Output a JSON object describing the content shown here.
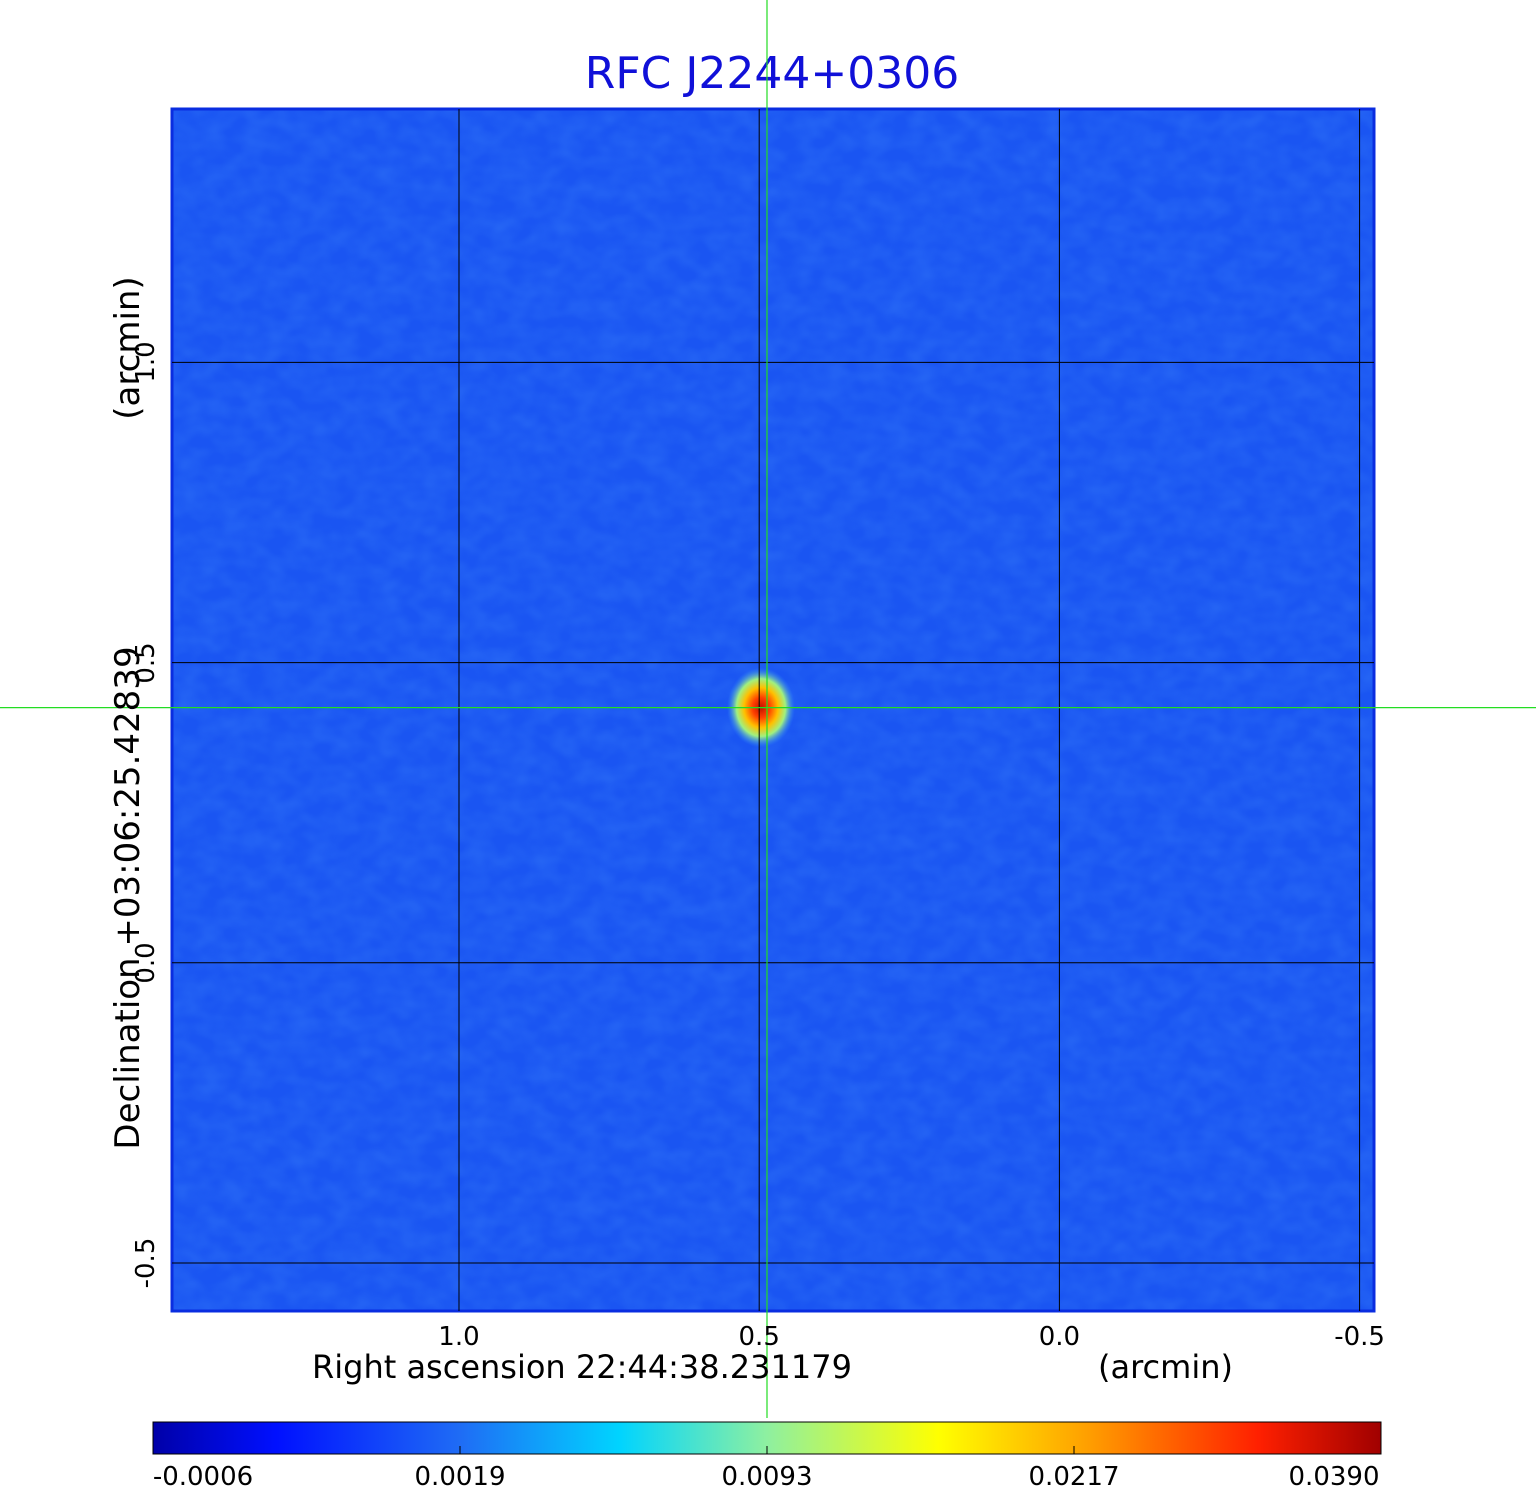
{
  "chart_data": {
    "type": "heatmap",
    "title": "RFC J2244+0306",
    "xlabel": "Right ascension  22:44:38.231179",
    "xlabel_unit": "(arcmin)",
    "ylabel": "Declination  +03:06:25.42839",
    "ylabel_unit": "(arcmin)",
    "x_ticks": [
      1.0,
      0.5,
      0.0,
      -0.5
    ],
    "x_tick_labels": [
      "1.0",
      "0.5",
      "0.0",
      "-0.5"
    ],
    "y_ticks": [
      1.0,
      0.5,
      0.0,
      -0.5
    ],
    "y_tick_labels": [
      "1.0",
      "0.5",
      "0.0",
      "-0.5"
    ],
    "xlim": [
      1.478,
      -0.524
    ],
    "ylim": [
      -0.58,
      1.422
    ],
    "grid": true,
    "crosshair": {
      "x": 0.487,
      "y": 0.425,
      "color": "#22dd22"
    },
    "peak": {
      "x": 0.497,
      "y": 0.425,
      "value": 0.039
    },
    "colormap": "jet",
    "colorbar": {
      "orientation": "horizontal",
      "position": "bottom",
      "tick_labels": [
        "-0.0006",
        "0.0019",
        "0.0093",
        "0.0217",
        "0.0390"
      ],
      "values": [
        -0.0006,
        0.0019,
        0.0093,
        0.0217,
        0.039
      ],
      "min": -0.0006,
      "max": 0.039
    }
  }
}
